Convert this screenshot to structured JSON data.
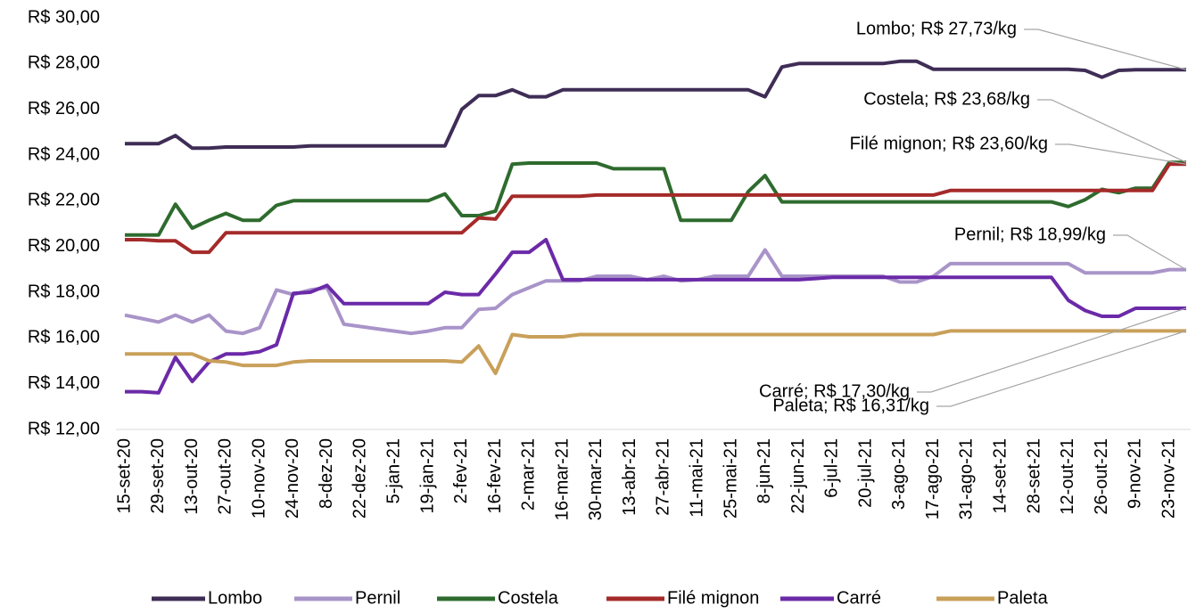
{
  "chart_data": {
    "type": "line",
    "categories": [
      "15-set-20",
      null,
      "29-set-20",
      null,
      "13-out-20",
      null,
      "27-out-20",
      null,
      "10-nov-20",
      null,
      "24-nov-20",
      null,
      "8-dez-20",
      null,
      "22-dez-20",
      null,
      "5-jan-21",
      null,
      "19-jan-21",
      null,
      "2-fev-21",
      null,
      "16-fev-21",
      null,
      "2-mar-21",
      null,
      "16-mar-21",
      null,
      "30-mar-21",
      null,
      "13-abr-21",
      null,
      "27-abr-21",
      null,
      "11-mai-21",
      null,
      "25-mai-21",
      null,
      "8-jun-21",
      null,
      "22-jun-21",
      null,
      "6-jul-21",
      null,
      "20-jul-21",
      null,
      "3-ago-21",
      null,
      "17-ago-21",
      null,
      "31-ago-21",
      null,
      "14-set-21",
      null,
      "28-set-21",
      null,
      "12-out-21",
      null,
      "26-out-21",
      null,
      "9-nov-21",
      null,
      "23-nov-21",
      null
    ],
    "series": [
      {
        "name": "Lombo",
        "color": "#3f2d56",
        "values": [
          24.5,
          24.5,
          24.5,
          24.85,
          24.3,
          24.3,
          24.35,
          24.35,
          24.35,
          24.35,
          24.35,
          24.4,
          24.4,
          24.4,
          24.4,
          24.4,
          24.4,
          24.4,
          24.4,
          24.4,
          26.0,
          26.6,
          26.6,
          26.85,
          26.55,
          26.55,
          26.85,
          26.85,
          26.85,
          26.85,
          26.85,
          26.85,
          26.85,
          26.85,
          26.85,
          26.85,
          26.85,
          26.85,
          26.55,
          27.85,
          28.0,
          28.0,
          28.0,
          28.0,
          28.0,
          28.0,
          28.1,
          28.1,
          27.75,
          27.75,
          27.75,
          27.75,
          27.75,
          27.75,
          27.75,
          27.75,
          27.75,
          27.7,
          27.4,
          27.7,
          27.73,
          27.73,
          27.73,
          27.73
        ]
      },
      {
        "name": "Pernil",
        "color": "#a994c9",
        "values": [
          17.0,
          16.85,
          16.7,
          17.0,
          16.7,
          17.0,
          16.3,
          16.2,
          16.45,
          18.1,
          17.9,
          18.1,
          18.2,
          16.6,
          16.5,
          16.4,
          16.3,
          16.2,
          16.3,
          16.45,
          16.45,
          17.25,
          17.3,
          17.9,
          18.2,
          18.5,
          18.5,
          18.5,
          18.7,
          18.7,
          18.7,
          18.55,
          18.7,
          18.5,
          18.55,
          18.7,
          18.7,
          18.7,
          19.85,
          18.7,
          18.7,
          18.7,
          18.7,
          18.7,
          18.7,
          18.7,
          18.45,
          18.45,
          18.7,
          19.25,
          19.25,
          19.25,
          19.25,
          19.25,
          19.25,
          19.25,
          19.25,
          18.85,
          18.85,
          18.85,
          18.85,
          18.85,
          18.99,
          18.99
        ]
      },
      {
        "name": "Costela",
        "color": "#2e6b2e",
        "values": [
          20.5,
          20.5,
          20.5,
          21.85,
          20.8,
          21.15,
          21.45,
          21.15,
          21.15,
          21.8,
          22.0,
          22.0,
          22.0,
          22.0,
          22.0,
          22.0,
          22.0,
          22.0,
          22.0,
          22.3,
          21.35,
          21.35,
          21.55,
          23.6,
          23.65,
          23.65,
          23.65,
          23.65,
          23.65,
          23.4,
          23.4,
          23.4,
          23.4,
          21.15,
          21.15,
          21.15,
          21.15,
          22.4,
          23.1,
          21.95,
          21.95,
          21.95,
          21.95,
          21.95,
          21.95,
          21.95,
          21.95,
          21.95,
          21.95,
          21.95,
          21.95,
          21.95,
          21.95,
          21.95,
          21.95,
          21.95,
          21.75,
          22.05,
          22.5,
          22.35,
          22.55,
          22.55,
          23.68,
          23.68
        ]
      },
      {
        "name": "Filé mignon",
        "color": "#a52a2a",
        "values": [
          20.3,
          20.3,
          20.25,
          20.25,
          19.75,
          19.75,
          20.6,
          20.6,
          20.6,
          20.6,
          20.6,
          20.6,
          20.6,
          20.6,
          20.6,
          20.6,
          20.6,
          20.6,
          20.6,
          20.6,
          20.6,
          21.25,
          21.2,
          22.2,
          22.2,
          22.2,
          22.2,
          22.2,
          22.25,
          22.25,
          22.25,
          22.25,
          22.25,
          22.25,
          22.25,
          22.25,
          22.25,
          22.25,
          22.25,
          22.25,
          22.25,
          22.25,
          22.25,
          22.25,
          22.25,
          22.25,
          22.25,
          22.25,
          22.25,
          22.45,
          22.45,
          22.45,
          22.45,
          22.45,
          22.45,
          22.45,
          22.45,
          22.45,
          22.45,
          22.45,
          22.45,
          22.45,
          23.6,
          23.6
        ]
      },
      {
        "name": "Carré",
        "color": "#6b2aa8",
        "values": [
          13.65,
          13.65,
          13.6,
          15.15,
          14.1,
          14.95,
          15.3,
          15.3,
          15.4,
          15.7,
          17.95,
          18.0,
          18.3,
          17.5,
          17.5,
          17.5,
          17.5,
          17.5,
          17.5,
          18.0,
          17.9,
          17.9,
          18.8,
          19.75,
          19.75,
          20.3,
          18.55,
          18.55,
          18.55,
          18.55,
          18.55,
          18.55,
          18.55,
          18.55,
          18.55,
          18.55,
          18.55,
          18.55,
          18.55,
          18.55,
          18.55,
          18.6,
          18.65,
          18.65,
          18.65,
          18.65,
          18.65,
          18.65,
          18.65,
          18.65,
          18.65,
          18.65,
          18.65,
          18.65,
          18.65,
          18.65,
          17.65,
          17.2,
          16.95,
          16.95,
          17.3,
          17.3,
          17.3,
          17.3
        ]
      },
      {
        "name": "Paleta",
        "color": "#c9a05a",
        "values": [
          15.3,
          15.3,
          15.3,
          15.3,
          15.3,
          15.0,
          14.95,
          14.8,
          14.8,
          14.8,
          14.95,
          15.0,
          15.0,
          15.0,
          15.0,
          15.0,
          15.0,
          15.0,
          15.0,
          15.0,
          14.95,
          15.65,
          14.45,
          16.15,
          16.05,
          16.05,
          16.05,
          16.15,
          16.15,
          16.15,
          16.15,
          16.15,
          16.15,
          16.15,
          16.15,
          16.15,
          16.15,
          16.15,
          16.15,
          16.15,
          16.15,
          16.15,
          16.15,
          16.15,
          16.15,
          16.15,
          16.15,
          16.15,
          16.15,
          16.31,
          16.31,
          16.31,
          16.31,
          16.31,
          16.31,
          16.31,
          16.31,
          16.31,
          16.31,
          16.31,
          16.31,
          16.31,
          16.31,
          16.31
        ]
      }
    ],
    "ylim": [
      12,
      30
    ],
    "yticks": [
      {
        "value": 12,
        "label": "R$ 12,00"
      },
      {
        "value": 14,
        "label": "R$ 14,00"
      },
      {
        "value": 16,
        "label": "R$ 16,00"
      },
      {
        "value": 18,
        "label": "R$ 18,00"
      },
      {
        "value": 20,
        "label": "R$ 20,00"
      },
      {
        "value": 22,
        "label": "R$ 22,00"
      },
      {
        "value": 24,
        "label": "R$ 24,00"
      },
      {
        "value": 26,
        "label": "R$ 26,00"
      },
      {
        "value": 28,
        "label": "R$ 28,00"
      },
      {
        "value": 30,
        "label": "R$ 30,00"
      }
    ],
    "annotations": [
      "Lombo; R$ 27,73/kg",
      "Costela; R$ 23,68/kg",
      "Filé mignon; R$ 23,60/kg",
      "Pernil; R$ 18,99/kg",
      "Carré; R$ 17,30/kg",
      "Paleta; R$ 16,31/kg"
    ],
    "legend": "bottom"
  }
}
